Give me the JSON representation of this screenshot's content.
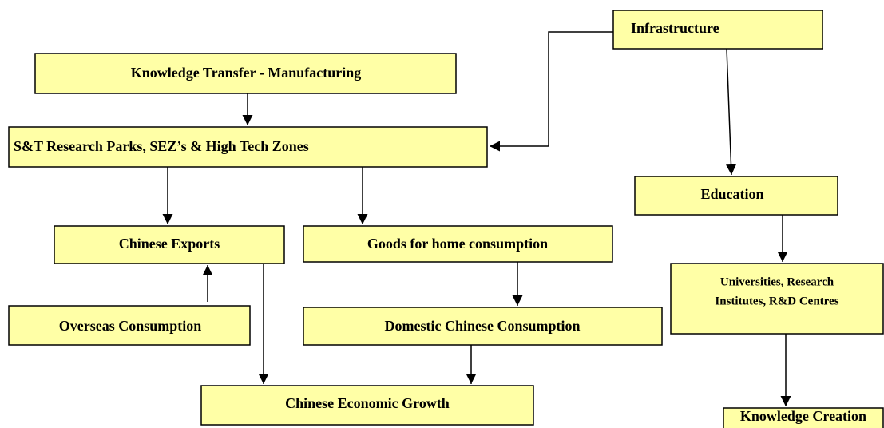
{
  "nodes": [
    {
      "label": "Infrastructure"
    },
    {
      "label": "Knowledge Transfer - Manufacturing"
    },
    {
      "label": "S&T Research Parks, SEZ’s & High Tech Zones"
    },
    {
      "label": "Education"
    },
    {
      "label": "Chinese Exports"
    },
    {
      "label": "Goods for home consumption"
    },
    {
      "label": "Overseas Consumption"
    },
    {
      "label": "Domestic Chinese Consumption"
    },
    {
      "lines": [
        "Universities, Research",
        "Institutes, R&D Centres"
      ]
    },
    {
      "label": "Chinese Economic Growth"
    },
    {
      "label": "Knowledge Creation"
    }
  ]
}
